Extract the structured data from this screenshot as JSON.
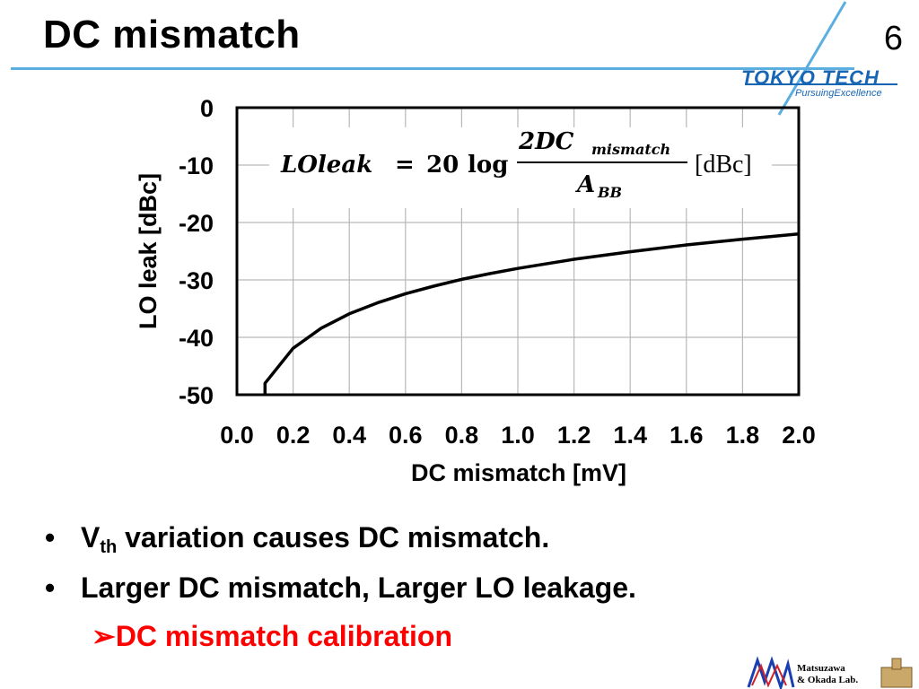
{
  "slide": {
    "title": "DC mismatch",
    "page_number": "6",
    "logo_text": "TOKYO TECH",
    "logo_tagline": "PursuingExcellence",
    "lab_name": [
      "Matsuzawa",
      "& Okada Lab."
    ]
  },
  "formula": {
    "lhs": "LOleak",
    "equals": "=",
    "coef": "20",
    "fn": "log",
    "numerator": "2DC",
    "numerator_sub": "mismatch",
    "denominator": "A",
    "denominator_sub": "BB",
    "unit": "[dBc]"
  },
  "bullets": [
    {
      "main": "V",
      "sub": "th",
      "rest": " variation causes DC mismatch."
    },
    {
      "main": "Larger DC mismatch, Larger LO leakage.",
      "sub": "",
      "rest": ""
    }
  ],
  "sub_bullet": {
    "marker": "➢",
    "text": "DC mismatch calibration",
    "color": "#ff0000"
  },
  "colors": {
    "accent": "#5aaee0",
    "logo": "#1766b5",
    "highlight": "#ff0000"
  },
  "chart_data": {
    "type": "line",
    "xlabel": "DC mismatch [mV]",
    "ylabel": "LO leak [dBc]",
    "xlim": [
      0.0,
      2.0
    ],
    "ylim": [
      -50,
      0
    ],
    "x_ticks": [
      "0.0",
      "0.2",
      "0.4",
      "0.6",
      "0.8",
      "1.0",
      "1.2",
      "1.4",
      "1.6",
      "1.8",
      "2.0"
    ],
    "y_ticks": [
      "0",
      "-10",
      "-20",
      "-30",
      "-40",
      "-50"
    ],
    "grid": true,
    "series": [
      {
        "x": [
          0.1,
          0.1,
          0.2,
          0.3,
          0.4,
          0.5,
          0.6,
          0.7,
          0.8,
          0.9,
          1.0,
          1.2,
          1.4,
          1.6,
          1.8,
          2.0
        ],
        "y": [
          -50,
          -48.0,
          -41.9,
          -38.4,
          -35.9,
          -34.0,
          -32.4,
          -31.1,
          -29.9,
          -28.9,
          -28.0,
          -26.4,
          -25.1,
          -23.9,
          -22.9,
          -22.0
        ]
      }
    ]
  }
}
